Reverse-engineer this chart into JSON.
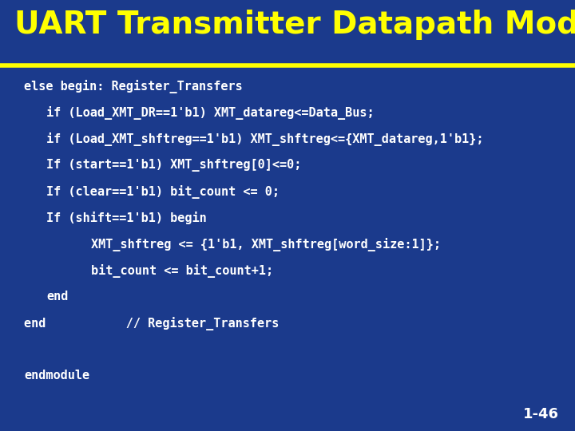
{
  "title": "UART Transmitter Datapath Module",
  "title_color": "#FFFF00",
  "separator_color": "#FFFF00",
  "slide_number": "1-46",
  "slide_number_color": "#FFFFFF",
  "bg_color": "#1B3A8C",
  "title_fontsize": 28,
  "code_fontsize": 11,
  "lines": [
    {
      "text": "else begin: Register_Transfers",
      "indent": 0
    },
    {
      "text": "if (Load_XMT_DR==1'b1) XMT_datareg<=Data_Bus;",
      "indent": 1
    },
    {
      "text": "if (Load_XMT_shftreg==1'b1) XMT_shftreg<={XMT_datareg,1'b1};",
      "indent": 1
    },
    {
      "text": "If (start==1'b1) XMT_shftreg[0]<=0;",
      "indent": 1
    },
    {
      "text": "If (clear==1'b1) bit_count <= 0;",
      "indent": 1
    },
    {
      "text": "If (shift==1'b1) begin",
      "indent": 1
    },
    {
      "text": "XMT_shftreg <= {1'b1, XMT_shftreg[word_size:1]};",
      "indent": 3
    },
    {
      "text": "bit_count <= bit_count+1;",
      "indent": 3
    },
    {
      "text": "end",
      "indent": 1
    },
    {
      "text": "end           // Register_Transfers",
      "indent": 0
    },
    {
      "text": "",
      "indent": 0
    },
    {
      "text": "endmodule",
      "indent": 0
    }
  ],
  "figsize": [
    7.2,
    5.4
  ],
  "dpi": 100
}
